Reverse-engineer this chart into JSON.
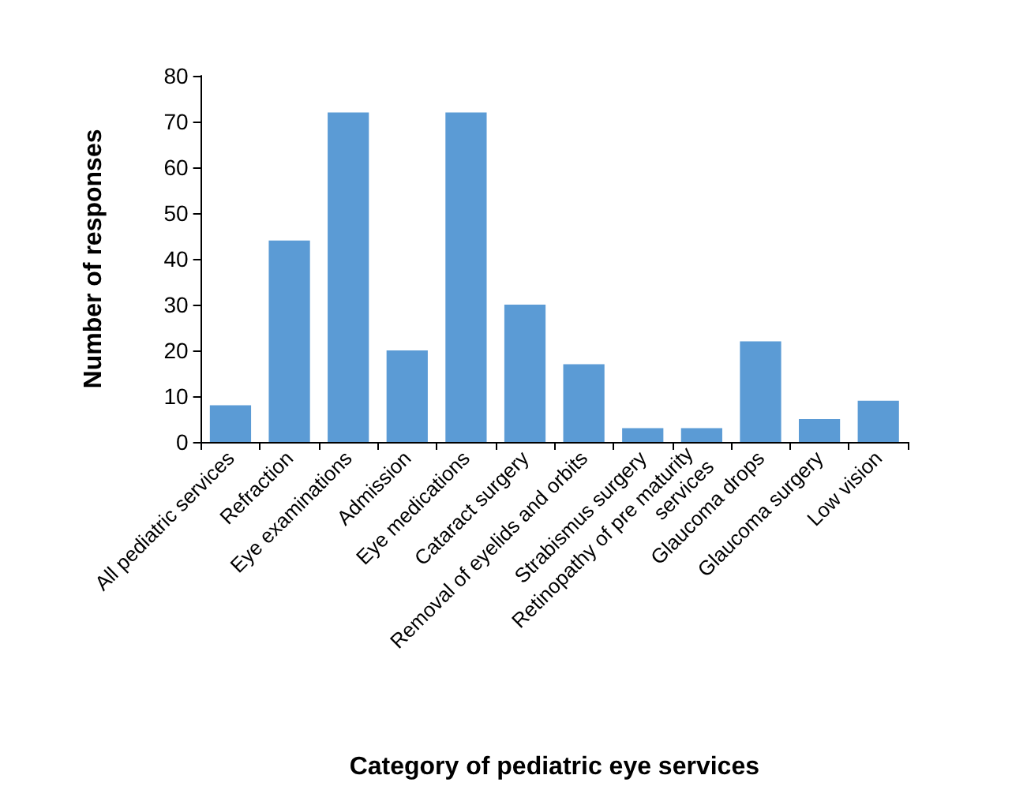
{
  "chart_data": {
    "type": "bar",
    "xlabel": "Category of pediatric eye services",
    "ylabel": "Number of responses",
    "categories": [
      "All pediatric services",
      "Refraction",
      "Eye examinations",
      "Admission",
      "Eye medications",
      "Cataract surgery",
      "Removal of eyelids and orbits",
      "Strabismus surgery",
      "Retinopathy of pre maturity services",
      "Glaucoma drops",
      "Glaucoma surgery",
      "Low vision"
    ],
    "values": [
      8,
      44,
      72,
      20,
      72,
      30,
      17,
      3,
      3,
      22,
      5,
      9
    ],
    "color": "#5b9bd5",
    "ylim": [
      0,
      80
    ],
    "yticks": [
      0,
      10,
      20,
      30,
      40,
      50,
      60,
      70,
      80
    ],
    "grid": false
  }
}
